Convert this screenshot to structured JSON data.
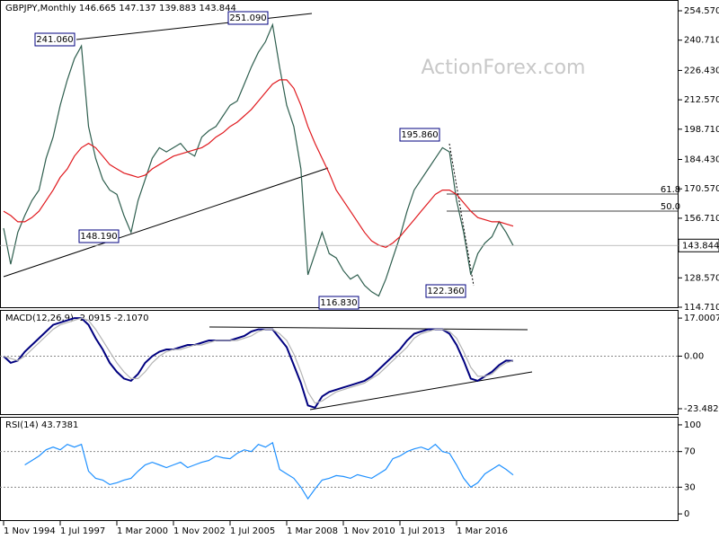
{
  "chart_data": [
    {
      "type": "line",
      "title": "GBPJPY,Monthly  146.665 147.137 139.883 143.844",
      "watermark": "ActionForex.com",
      "series": [
        {
          "color": "#2e5e4e",
          "values": [
            152,
            135,
            150,
            158,
            165,
            170,
            185,
            195,
            210,
            222,
            232,
            238,
            200,
            185,
            175,
            170,
            168,
            158,
            150,
            165,
            175,
            185,
            190,
            188,
            190,
            192,
            188,
            186,
            195,
            198,
            200,
            205,
            210,
            212,
            220,
            228,
            235,
            240,
            248,
            228,
            210,
            200,
            180,
            130,
            140,
            150,
            140,
            138,
            132,
            128,
            130,
            125,
            122,
            120,
            128,
            138,
            148,
            160,
            170,
            175,
            180,
            185,
            190,
            188,
            165,
            150,
            130,
            140,
            145,
            148,
            155,
            150,
            143.844
          ]
        },
        {
          "color": "#e0191e",
          "values": [
            160,
            158,
            155,
            155,
            157,
            160,
            165,
            170,
            176,
            180,
            186,
            190,
            192,
            190,
            186,
            182,
            180,
            178,
            177,
            176,
            177,
            180,
            182,
            184,
            186,
            187,
            188,
            189,
            190,
            192,
            195,
            197,
            200,
            202,
            205,
            208,
            212,
            216,
            220,
            222,
            222,
            218,
            210,
            200,
            192,
            185,
            178,
            170,
            165,
            160,
            155,
            150,
            146,
            144,
            143,
            145,
            148,
            152,
            156,
            160,
            164,
            168,
            170,
            170,
            168,
            164,
            160,
            157,
            156,
            155,
            155,
            154,
            153
          ]
        }
      ],
      "ylim": [
        114.29,
        259.66
      ],
      "yticks": [
        {
          "value": 254.57,
          "label": "254.570"
        },
        {
          "value": 240.71,
          "label": "240.710"
        },
        {
          "value": 226.43,
          "label": "226.430"
        },
        {
          "value": 212.57,
          "label": "212.570"
        },
        {
          "value": 198.71,
          "label": "198.710"
        },
        {
          "value": 184.43,
          "label": "184.430"
        },
        {
          "value": 170.57,
          "label": "170.570"
        },
        {
          "value": 156.71,
          "label": "156.710"
        },
        {
          "value": 128.57,
          "label": "128.570"
        },
        {
          "value": 114.71,
          "label": "114.710"
        }
      ],
      "last_price": {
        "value": 143.844,
        "label": "143.844"
      },
      "annotations": [
        "241.060",
        "251.090",
        "148.190",
        "116.830",
        "195.860",
        "122.360",
        "61.8",
        "50.0"
      ]
    },
    {
      "type": "line",
      "title": "MACD(12,26,9) -2.0915 -2.1070",
      "series": [
        {
          "color": "#00007f",
          "values": [
            0,
            -3,
            -2,
            2,
            5,
            8,
            11,
            14,
            15,
            16,
            17,
            17,
            14,
            8,
            3,
            -3,
            -7,
            -10,
            -11,
            -8,
            -3,
            0,
            2,
            3,
            3,
            4,
            5,
            5,
            6,
            7,
            7,
            7,
            7,
            8,
            9,
            11,
            12,
            12,
            12,
            8,
            4,
            -4,
            -12,
            -22,
            -23,
            -18,
            -16,
            -15,
            -14,
            -13,
            -12,
            -11,
            -9,
            -6,
            -3,
            0,
            3,
            7,
            10,
            11,
            12,
            12,
            12,
            10,
            5,
            -2,
            -10,
            -11,
            -9,
            -7,
            -4,
            -2,
            -2.0915
          ]
        },
        {
          "color": "#b4b4b4",
          "values": [
            0,
            -1,
            -2,
            0,
            3,
            6,
            9,
            12,
            14,
            15,
            16,
            17,
            16,
            12,
            7,
            2,
            -3,
            -7,
            -10,
            -10,
            -7,
            -3,
            0,
            2,
            3,
            3,
            4,
            5,
            5,
            6,
            7,
            7,
            7,
            7,
            8,
            9,
            11,
            12,
            12,
            10,
            7,
            1,
            -7,
            -16,
            -21,
            -20,
            -18,
            -16,
            -15,
            -14,
            -13,
            -12,
            -10,
            -8,
            -5,
            -2,
            1,
            4,
            8,
            10,
            11,
            12,
            12,
            11,
            8,
            2,
            -5,
            -9,
            -9,
            -8,
            -5,
            -3,
            -2.107
          ]
        }
      ],
      "ylim": [
        -26.3,
        20.65
      ],
      "yticks": [
        17.0007,
        {
          "value": 0,
          "label": "0.00"
        },
        -23.4823
      ],
      "levels": [
        0
      ]
    },
    {
      "type": "line",
      "title": "RSI(14) 43.7381",
      "categories": [
        "1 Nov 1994",
        null,
        null,
        null,
        null,
        null,
        null,
        null,
        "1 Jul 1997",
        null,
        null,
        null,
        null,
        null,
        null,
        null,
        "1 Mar 2000",
        null,
        null,
        null,
        null,
        null,
        null,
        null,
        "1 Nov 2002",
        null,
        null,
        null,
        null,
        null,
        null,
        null,
        "1 Jul 2005",
        null,
        null,
        null,
        null,
        null,
        null,
        null,
        "1 Mar 2008",
        null,
        null,
        null,
        null,
        null,
        null,
        null,
        "1 Nov 2010",
        null,
        null,
        null,
        null,
        null,
        null,
        null,
        "1 Jul 2013",
        null,
        null,
        null,
        null,
        null,
        null,
        null,
        "1 Mar 2016",
        null,
        null,
        null,
        null,
        null,
        null,
        null,
        null
      ],
      "series": [
        {
          "color": "#1e90ff",
          "values": [
            null,
            null,
            null,
            55,
            60,
            65,
            72,
            75,
            72,
            78,
            75,
            78,
            48,
            40,
            38,
            33,
            35,
            38,
            40,
            48,
            55,
            58,
            55,
            52,
            55,
            58,
            52,
            55,
            58,
            60,
            65,
            63,
            62,
            68,
            72,
            70,
            78,
            75,
            80,
            50,
            45,
            40,
            30,
            17,
            28,
            38,
            40,
            43,
            42,
            40,
            44,
            42,
            40,
            45,
            50,
            62,
            65,
            70,
            73,
            75,
            72,
            78,
            70,
            68,
            55,
            40,
            30,
            35,
            45,
            50,
            55,
            50,
            43.7381
          ]
        }
      ],
      "ylim": [
        -8,
        109
      ],
      "yticks": [
        100,
        70,
        30,
        0
      ],
      "levels": [
        70,
        30
      ]
    }
  ]
}
